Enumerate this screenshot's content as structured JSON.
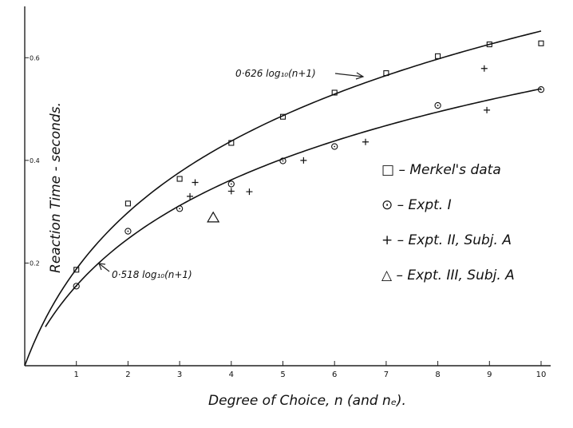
{
  "chart_data": {
    "type": "scatter",
    "title": "",
    "xlabel": "Degree of Choice, n   (and nₑ).",
    "ylabel": "Reaction Time - seconds.",
    "xlim": [
      0,
      10
    ],
    "ylim": [
      0,
      0.7
    ],
    "x_ticks": [
      1,
      2,
      3,
      4,
      5,
      6,
      7,
      8,
      9,
      10
    ],
    "y_ticks": [
      0.2,
      0.4,
      0.6
    ],
    "grid": false,
    "legend_position": "right",
    "series": [
      {
        "name": "Merkel's data",
        "marker": "square",
        "points": [
          {
            "x": 1,
            "y": 0.187
          },
          {
            "x": 2,
            "y": 0.316
          },
          {
            "x": 3,
            "y": 0.364
          },
          {
            "x": 4,
            "y": 0.434
          },
          {
            "x": 5,
            "y": 0.485
          },
          {
            "x": 6,
            "y": 0.532
          },
          {
            "x": 7,
            "y": 0.57
          },
          {
            "x": 8,
            "y": 0.603
          },
          {
            "x": 9,
            "y": 0.626
          },
          {
            "x": 10,
            "y": 0.628
          }
        ]
      },
      {
        "name": "Expt. I",
        "marker": "circle",
        "points": [
          {
            "x": 1,
            "y": 0.155
          },
          {
            "x": 2,
            "y": 0.262
          },
          {
            "x": 3,
            "y": 0.306
          },
          {
            "x": 4,
            "y": 0.354
          },
          {
            "x": 5,
            "y": 0.399
          },
          {
            "x": 6,
            "y": 0.427
          },
          {
            "x": 8,
            "y": 0.507
          },
          {
            "x": 10,
            "y": 0.538
          }
        ]
      },
      {
        "name": "Expt. II, Subj. A",
        "marker": "plus",
        "points": [
          {
            "x": 3.2,
            "y": 0.33
          },
          {
            "x": 3.3,
            "y": 0.357
          },
          {
            "x": 4,
            "y": 0.34
          },
          {
            "x": 4.35,
            "y": 0.339
          },
          {
            "x": 5.4,
            "y": 0.4
          },
          {
            "x": 6.6,
            "y": 0.436
          },
          {
            "x": 8.9,
            "y": 0.579
          },
          {
            "x": 8.95,
            "y": 0.498
          }
        ]
      },
      {
        "name": "Expt. III, Subj. A",
        "marker": "triangle",
        "points": [
          {
            "x": 3.65,
            "y": 0.288
          }
        ]
      }
    ],
    "curves": [
      {
        "label": "0·626 log₁₀(n+1)",
        "coefficient": 0.626,
        "x_from": 0,
        "x_to": 10
      },
      {
        "label": "0·518 log₁₀(n+1)",
        "coefficient": 0.518,
        "x_from": 0.4,
        "x_to": 10
      }
    ],
    "legend": [
      "□ – Merkel's data",
      "⊙ – Expt. I",
      "+ – Expt. II, Subj. A",
      "△ – Expt. III, Subj. A"
    ]
  }
}
